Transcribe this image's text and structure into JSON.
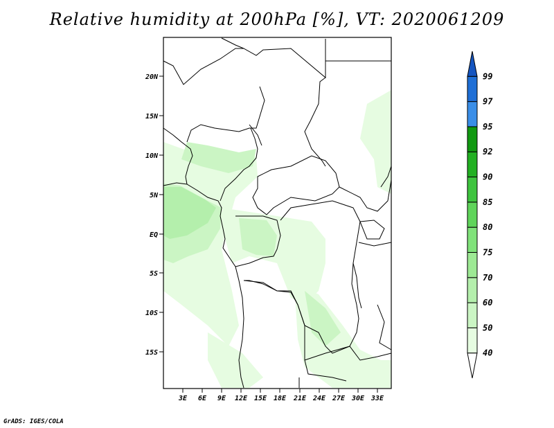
{
  "title": "Relative humidity at 200hPa [%], VT: 2020061209",
  "credit": "GrADS: IGES/COLA",
  "lat_labels": [
    "20N",
    "15N",
    "10N",
    "5N",
    "EQ",
    "5S",
    "10S",
    "15S"
  ],
  "lon_labels": [
    "3E",
    "6E",
    "9E",
    "12E",
    "15E",
    "18E",
    "21E",
    "24E",
    "27E",
    "30E",
    "33E"
  ],
  "legend": {
    "levels": [
      "40",
      "50",
      "60",
      "70",
      "75",
      "80",
      "85",
      "90",
      "92",
      "95",
      "97",
      "99"
    ],
    "colors": [
      "#ffffff",
      "#e6fce1",
      "#cbf5c4",
      "#b4efac",
      "#9de994",
      "#80e27a",
      "#5fd45a",
      "#3ec43e",
      "#22b022",
      "#119911",
      "#3a8ee8",
      "#1f6fd6",
      "#1555c0"
    ]
  },
  "map": {
    "land_fill": "#ffffff",
    "humid_light": "#e6fce1",
    "humid_mid": "#cbf5c4",
    "humid_high": "#b4efac"
  }
}
